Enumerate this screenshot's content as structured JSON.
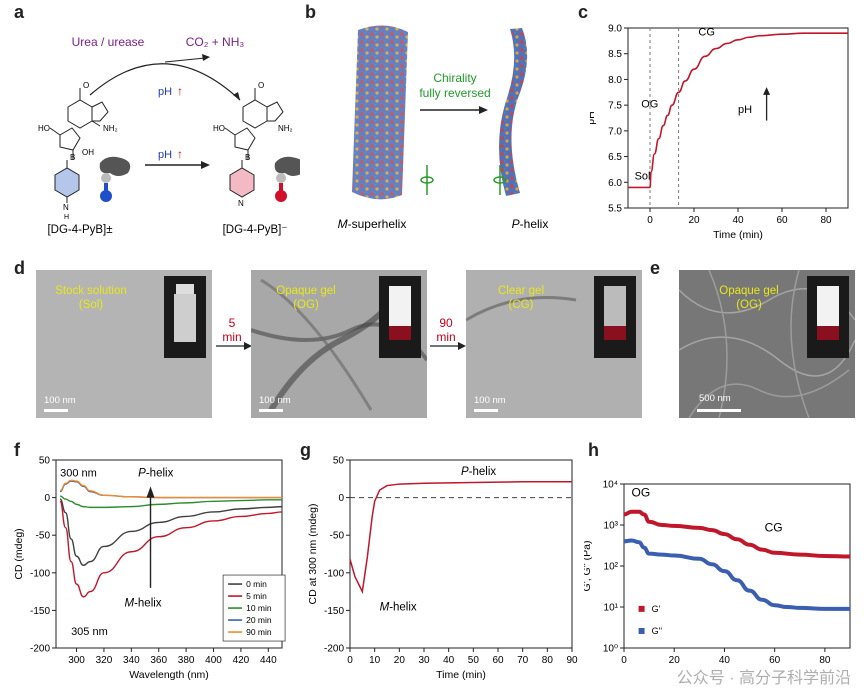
{
  "panels": {
    "a": "a",
    "b": "b",
    "c": "c",
    "d": "d",
    "e": "e",
    "f": "f",
    "g": "g",
    "h": "h"
  },
  "panel_a": {
    "reagent": "Urea / urease",
    "product": "CO₂ + NH₃",
    "ph_label": "pH",
    "ph_label2": "pH",
    "left_compound": "[DG-4-PyB]±",
    "right_compound": "[DG-4-PyB]⁻",
    "oh": "OH",
    "ho": "HO",
    "nh2": "NH₂",
    "b": "B",
    "o": "O",
    "n": "N",
    "h": "H",
    "ohb": "OH"
  },
  "panel_b": {
    "arrow_text_1": "Chirality",
    "arrow_text_2": "fully reversed",
    "left_label_italic": "M",
    "left_label_rest": "-superhelix",
    "right_label_italic": "P",
    "right_label_rest": "-helix"
  },
  "panel_c": {
    "xlabel": "Time (min)",
    "ylabel": "pH",
    "phase_sol": "Sol",
    "phase_og": "OG",
    "phase_cg": "CG",
    "ph_arrow_label": "pH",
    "xticks": [
      "0",
      "20",
      "40",
      "60",
      "80"
    ],
    "yticks": [
      "5.5",
      "6.0",
      "6.5",
      "7.0",
      "7.5",
      "8.0",
      "8.5",
      "9.0"
    ]
  },
  "panel_d": {
    "sol_caption_1": "Stock solution",
    "sol_caption_2": "(Sol)",
    "og_caption_1": "Opaque gel",
    "og_caption_2": "(OG)",
    "cg_caption_1": "Clear gel",
    "cg_caption_2": "(CG)",
    "arrow1_1": "5",
    "arrow1_2": "min",
    "arrow2_1": "90",
    "arrow2_2": "min",
    "scale1": "100 nm",
    "scale2": "100 nm",
    "scale3": "100 nm"
  },
  "panel_e": {
    "caption_1": "Opaque gel",
    "caption_2": "(OG)",
    "scale": "500 nm"
  },
  "panel_f": {
    "label_300": "300 nm",
    "label_305": "305 nm",
    "p_helix_italic": "P",
    "p_helix_rest": "-helix",
    "m_helix_italic": "M",
    "m_helix_rest": "-helix",
    "xticks": [
      "300",
      "320",
      "340",
      "360",
      "380",
      "400",
      "420",
      "440"
    ],
    "yticks": [
      "-200",
      "-150",
      "-100",
      "-50",
      "0",
      "50"
    ]
  },
  "panel_g": {
    "p_helix_italic": "P",
    "p_helix_rest": "-helix",
    "m_helix_italic": "M",
    "m_helix_rest": "-helix",
    "xticks": [
      "0",
      "10",
      "20",
      "30",
      "40",
      "50",
      "60",
      "70",
      "80",
      "90"
    ],
    "yticks": [
      "-200",
      "-150",
      "-100",
      "-50",
      "0",
      "50"
    ]
  },
  "panel_h": {
    "label_og": "OG",
    "label_cg": "CG",
    "xticks": [
      "0",
      "20",
      "40",
      "60",
      "80"
    ],
    "yticks": [
      "10⁰",
      "10¹",
      "10²",
      "10³",
      "10⁴"
    ]
  },
  "watermark": "公众号 · 高分子科学前沿",
  "colors": {
    "red": "#c0172b",
    "blue": "#3a5fb0",
    "green": "#2e8b2e",
    "orange": "#f28c28",
    "purple": "#7a1f8a",
    "dark": "#404040"
  },
  "chart_data": [
    {
      "type": "line",
      "panel": "c",
      "title": "",
      "xlabel": "Time (min)",
      "ylabel": "pH",
      "xlim": [
        -10,
        90
      ],
      "ylim": [
        5.5,
        9.0
      ],
      "annotations": [
        "Sol",
        "OG",
        "CG",
        "pH"
      ],
      "series": [
        {
          "x": [
            -10,
            0,
            0.5,
            2,
            4,
            6,
            8,
            10,
            13,
            16,
            20,
            25,
            30,
            35,
            40,
            45,
            50,
            60,
            70,
            80,
            90
          ],
          "values": [
            5.9,
            5.9,
            6.2,
            6.55,
            6.85,
            7.1,
            7.3,
            7.5,
            7.75,
            7.97,
            8.2,
            8.45,
            8.6,
            8.7,
            8.77,
            8.82,
            8.85,
            8.88,
            8.9,
            8.9,
            8.9
          ]
        }
      ],
      "vlines": [
        0,
        13
      ]
    },
    {
      "type": "line",
      "panel": "f",
      "title": "",
      "xlabel": "Wavelength (nm)",
      "ylabel": "CD (mdeg)",
      "xlim": [
        285,
        450
      ],
      "ylim": [
        -200,
        50
      ],
      "legend": "bottom-right",
      "x": [
        288,
        292,
        296,
        300,
        305,
        310,
        320,
        340,
        360,
        380,
        400,
        420,
        440,
        450
      ],
      "series": [
        {
          "name": "0 min",
          "values": [
            -2,
            -20,
            -55,
            -78,
            -90,
            -85,
            -65,
            -45,
            -33,
            -25,
            -19,
            -15,
            -13,
            -12
          ]
        },
        {
          "name": "5 min",
          "values": [
            -5,
            -40,
            -85,
            -115,
            -132,
            -125,
            -100,
            -72,
            -52,
            -40,
            -31,
            -25,
            -21,
            -19
          ]
        },
        {
          "name": "10 min",
          "values": [
            2,
            -2,
            -5,
            -9,
            -12,
            -13,
            -13,
            -12,
            -9,
            -7,
            -5,
            -4,
            -3,
            -3
          ]
        },
        {
          "name": "20 min",
          "values": [
            8,
            18,
            22,
            21,
            15,
            8,
            3,
            1,
            0,
            0,
            0,
            0,
            0,
            0
          ]
        },
        {
          "name": "90 min",
          "values": [
            9,
            19,
            23,
            22,
            16,
            9,
            3,
            1,
            0,
            0,
            0,
            0,
            0,
            0
          ]
        }
      ]
    },
    {
      "type": "line",
      "panel": "g",
      "title": "",
      "xlabel": "Time (min)",
      "ylabel": "CD at 300 nm (mdeg)",
      "xlim": [
        0,
        90
      ],
      "ylim": [
        -200,
        50
      ],
      "series": [
        {
          "x": [
            0,
            2,
            5,
            7,
            9,
            10,
            12,
            15,
            20,
            30,
            40,
            50,
            60,
            70,
            80,
            90
          ],
          "values": [
            -82,
            -105,
            -125,
            -80,
            -25,
            -5,
            10,
            16,
            18,
            19,
            19.5,
            20,
            20.5,
            21,
            21,
            21
          ]
        }
      ],
      "hline": 0
    },
    {
      "type": "line",
      "panel": "h",
      "title": "",
      "xlabel": "",
      "ylabel": "G', G'' (Pa)",
      "xlim": [
        0,
        90
      ],
      "ylim": [
        1,
        10000
      ],
      "yscale": "log",
      "legend": "bottom-left",
      "series": [
        {
          "name": "G'",
          "x": [
            0,
            3,
            6,
            8,
            10,
            15,
            20,
            30,
            35,
            40,
            45,
            50,
            55,
            60,
            70,
            80,
            90
          ],
          "values": [
            1800,
            2100,
            2100,
            1800,
            1200,
            1000,
            950,
            850,
            750,
            600,
            450,
            330,
            250,
            210,
            190,
            175,
            170
          ]
        },
        {
          "name": "G''",
          "x": [
            0,
            3,
            6,
            8,
            10,
            15,
            20,
            30,
            35,
            40,
            45,
            50,
            55,
            60,
            65,
            70,
            80,
            90
          ],
          "values": [
            400,
            420,
            380,
            280,
            200,
            190,
            180,
            150,
            110,
            75,
            45,
            25,
            15,
            11,
            10,
            9.5,
            9,
            9
          ]
        }
      ]
    }
  ]
}
